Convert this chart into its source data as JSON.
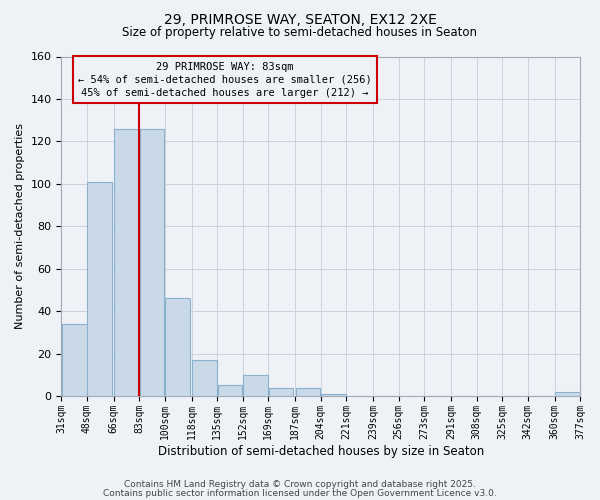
{
  "title_line1": "29, PRIMROSE WAY, SEATON, EX12 2XE",
  "title_line2": "Size of property relative to semi-detached houses in Seaton",
  "xlabel": "Distribution of semi-detached houses by size in Seaton",
  "ylabel": "Number of semi-detached properties",
  "bar_left_edges": [
    31,
    48,
    66,
    83,
    100,
    118,
    135,
    152,
    169,
    187,
    204,
    221,
    239,
    256,
    273,
    291,
    308,
    325,
    342,
    360
  ],
  "bar_heights": [
    34,
    101,
    126,
    126,
    46,
    17,
    5,
    10,
    4,
    4,
    1,
    0,
    0,
    0,
    0,
    0,
    0,
    0,
    0,
    2
  ],
  "bin_width": 17,
  "bar_color": "#c9d9e8",
  "bar_edgecolor": "#8ab0cc",
  "grid_color": "#c8d4e0",
  "background_color": "#eef2f7",
  "vline_x": 83,
  "vline_color": "#cc0000",
  "annotation_line1": "29 PRIMROSE WAY: 83sqm",
  "annotation_line2": "← 54% of semi-detached houses are smaller (256)",
  "annotation_line3": "45% of semi-detached houses are larger (212) →",
  "annotation_box_color": "#cc0000",
  "annotation_text_fontsize": 7.5,
  "ylim": [
    0,
    160
  ],
  "yticks": [
    0,
    20,
    40,
    60,
    80,
    100,
    120,
    140,
    160
  ],
  "x_tick_labels": [
    "31sqm",
    "48sqm",
    "66sqm",
    "83sqm",
    "100sqm",
    "118sqm",
    "135sqm",
    "152sqm",
    "169sqm",
    "187sqm",
    "204sqm",
    "221sqm",
    "239sqm",
    "256sqm",
    "273sqm",
    "291sqm",
    "308sqm",
    "325sqm",
    "342sqm",
    "360sqm",
    "377sqm"
  ],
  "footer_line1": "Contains HM Land Registry data © Crown copyright and database right 2025.",
  "footer_line2": "Contains public sector information licensed under the Open Government Licence v3.0.",
  "footer_fontsize": 6.5,
  "title_fontsize": 10,
  "subtitle_fontsize": 8.5,
  "xlabel_fontsize": 8.5,
  "ylabel_fontsize": 8.0
}
